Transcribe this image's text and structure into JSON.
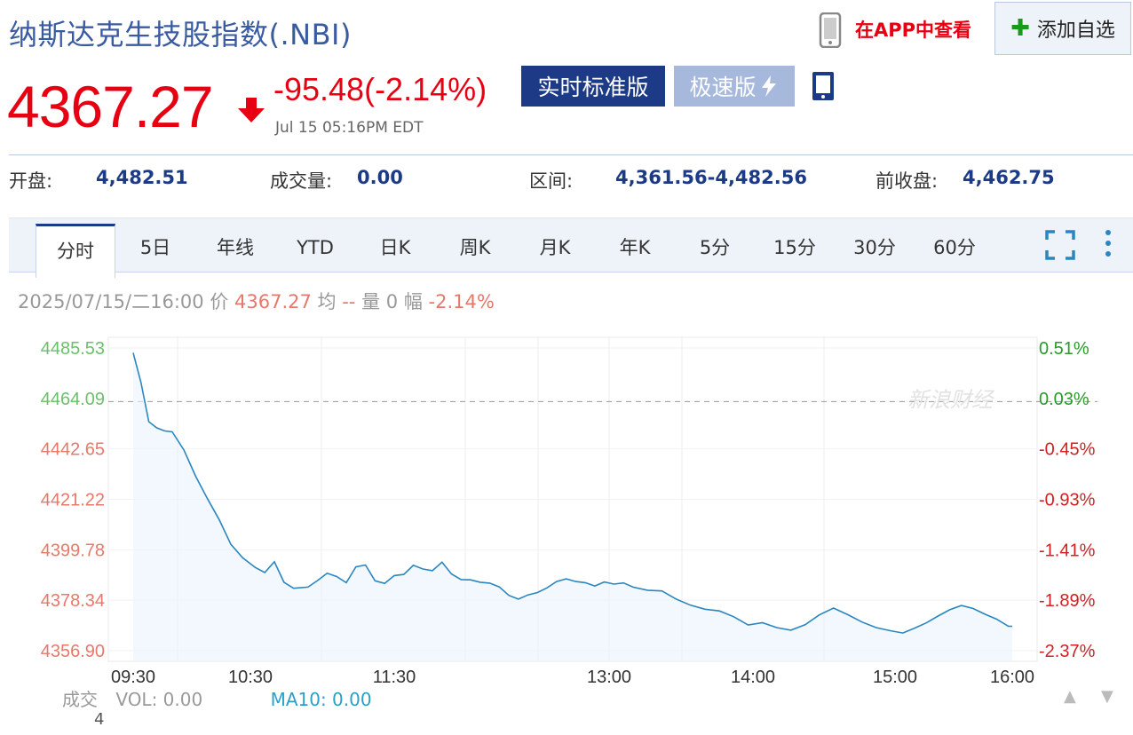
{
  "header": {
    "title": "纳斯达克生技股指数(.NBI)",
    "app_link": "在APP中查看",
    "add_button": "添加自选"
  },
  "quote": {
    "price": "4367.27",
    "change": "-95.48(-2.14%)",
    "timestamp": "Jul 15 05:16PM EDT",
    "btn_realtime": "实时标准版",
    "btn_fast": "极速版"
  },
  "stats": [
    {
      "label": "开盘:",
      "value": "4,482.51"
    },
    {
      "label": "成交量:",
      "value": "0.00"
    },
    {
      "label": "区间:",
      "value": "4,361.56-4,482.56"
    },
    {
      "label": "前收盘:",
      "value": "4,462.75"
    }
  ],
  "tabs": [
    "分时",
    "5日",
    "年线",
    "YTD",
    "日K",
    "周K",
    "月K",
    "年K",
    "5分",
    "15分",
    "30分",
    "60分"
  ],
  "active_tab": 0,
  "crosshair_info": {
    "date": "2025/07/15/二16:00",
    "price_label": "价",
    "price": "4367.27",
    "avg_label": "均",
    "avg": "--",
    "vol_label": "量",
    "vol": "0",
    "amp_label": "幅",
    "amp": "-2.14%"
  },
  "colors": {
    "up": "#e60012",
    "brand": "#1c3a86",
    "line": "#2a86c0",
    "green_axis": "#2a9a2a",
    "red_axis": "#d32020"
  },
  "chart_data": {
    "type": "line",
    "prev_close": 4462.75,
    "y_ticks_left": [
      "4485.53",
      "4464.09",
      "4442.65",
      "4421.22",
      "4399.78",
      "4378.34",
      "4356.90"
    ],
    "y_ticks_right": [
      "0.51%",
      "0.03%",
      "-0.45%",
      "-0.93%",
      "-1.41%",
      "-1.89%",
      "-2.37%"
    ],
    "x_ticks": [
      "09:30",
      "10:30",
      "11:30",
      "13:00",
      "14:00",
      "15:00",
      "16:00"
    ],
    "ylim": [
      4356.9,
      4485.53
    ],
    "watermark": "新浪财经",
    "series": [
      {
        "x_minutes": [
          0,
          4,
          8,
          12,
          16,
          20,
          26,
          32,
          38,
          44,
          50,
          56,
          62,
          66,
          70,
          74,
          78,
          84,
          88,
          92,
          96,
          100,
          104,
          108,
          112,
          116,
          120,
          124,
          128,
          132,
          136,
          140,
          144,
          148,
          152,
          156,
          160,
          164,
          168,
          172,
          176,
          180,
          184,
          188,
          192,
          196,
          200,
          204,
          208,
          212,
          216,
          220,
          226,
          232,
          238,
          244,
          250,
          256,
          262,
          268,
          274,
          280,
          286,
          292,
          298,
          304,
          310,
          316,
          322,
          328,
          334,
          340,
          346,
          352,
          358,
          364,
          370,
          376,
          382,
          388,
          390
        ],
        "values": [
          4483.5,
          4470.8,
          4454.2,
          4451.6,
          4450.3,
          4449.9,
          4442.1,
          4431.0,
          4421.5,
          4412.6,
          4402.1,
          4396.4,
          4392.3,
          4390.1,
          4394.7,
          4386.0,
          4383.4,
          4383.9,
          4386.7,
          4389.8,
          4388.4,
          4385.8,
          4392.5,
          4393.3,
          4386.6,
          4385.5,
          4388.8,
          4389.3,
          4393.2,
          4391.6,
          4390.9,
          4394.5,
          4389.5,
          4387.1,
          4387.0,
          4386.0,
          4385.6,
          4384.0,
          4380.4,
          4378.8,
          4380.6,
          4381.6,
          4383.6,
          4386.3,
          4387.4,
          4386.3,
          4385.8,
          4384.4,
          4386.1,
          4385.2,
          4385.7,
          4383.9,
          4382.6,
          4382.3,
          4378.8,
          4376.2,
          4374.5,
          4373.8,
          4371.3,
          4367.8,
          4368.8,
          4366.7,
          4365.6,
          4367.9,
          4372.1,
          4375.0,
          4372.2,
          4369.1,
          4366.7,
          4365.4,
          4364.4,
          4366.5,
          4368.7,
          4371.6,
          4374.3,
          4376.1,
          4374.8,
          4372.4,
          4370.3,
          4367.3,
          4367.27
        ]
      }
    ]
  },
  "volume": {
    "label": "成交",
    "vol_text": "VOL: 0.00",
    "ma_text": "MA10: 0.00",
    "axis_value": "4"
  }
}
